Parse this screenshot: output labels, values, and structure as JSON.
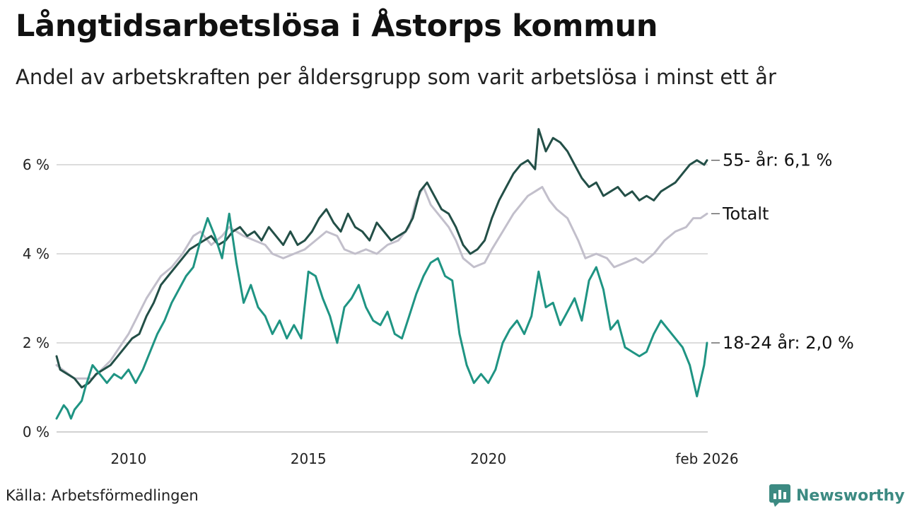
{
  "title": "Långtidsarbetslösa i Åstorps kommun",
  "subtitle": "Andel av arbetskraften per åldersgrupp som varit arbetslösa i minst ett år",
  "source": "Källa: Arbetsförmedlingen",
  "brand": {
    "name": "Newsworthy",
    "icon": "newsworthy-logo-icon",
    "color": "#3c8a82"
  },
  "chart_data": {
    "type": "line",
    "title": "Långtidsarbetslösa i Åstorps kommun",
    "xlabel": "",
    "ylabel": "",
    "x_start_month": "2008-01",
    "x_end_month": "2026-02",
    "xlim": [
      2008.0,
      2026.1
    ],
    "ylim": [
      0,
      7
    ],
    "y_ticks": [
      {
        "value": 0,
        "label": "0 %"
      },
      {
        "value": 2,
        "label": "2 %"
      },
      {
        "value": 4,
        "label": "4 %"
      },
      {
        "value": 6,
        "label": "6 %"
      }
    ],
    "x_ticks": [
      {
        "value": 2010,
        "label": "2010"
      },
      {
        "value": 2015,
        "label": "2015"
      },
      {
        "value": 2020,
        "label": "2020"
      },
      {
        "value": 2026.08,
        "label": "feb 2026"
      }
    ],
    "grid": true,
    "series": [
      {
        "name": "Totalt",
        "label": "Totalt",
        "color": "#c2bfcb",
        "width": 3,
        "points": [
          [
            2008.0,
            1.5
          ],
          [
            2008.5,
            1.2
          ],
          [
            2009.0,
            1.2
          ],
          [
            2009.5,
            1.6
          ],
          [
            2010.0,
            2.2
          ],
          [
            2010.5,
            3.0
          ],
          [
            2010.9,
            3.5
          ],
          [
            2011.2,
            3.7
          ],
          [
            2011.5,
            4.0
          ],
          [
            2011.8,
            4.4
          ],
          [
            2012.0,
            4.5
          ],
          [
            2012.3,
            4.2
          ],
          [
            2012.6,
            4.4
          ],
          [
            2012.8,
            4.6
          ],
          [
            2013.2,
            4.4
          ],
          [
            2013.5,
            4.3
          ],
          [
            2013.8,
            4.2
          ],
          [
            2014.0,
            4.0
          ],
          [
            2014.3,
            3.9
          ],
          [
            2014.6,
            4.0
          ],
          [
            2014.9,
            4.1
          ],
          [
            2015.2,
            4.3
          ],
          [
            2015.5,
            4.5
          ],
          [
            2015.8,
            4.4
          ],
          [
            2016.0,
            4.1
          ],
          [
            2016.3,
            4.0
          ],
          [
            2016.6,
            4.1
          ],
          [
            2016.9,
            4.0
          ],
          [
            2017.2,
            4.2
          ],
          [
            2017.5,
            4.3
          ],
          [
            2017.8,
            4.6
          ],
          [
            2018.0,
            5.2
          ],
          [
            2018.2,
            5.5
          ],
          [
            2018.4,
            5.1
          ],
          [
            2018.6,
            4.9
          ],
          [
            2018.9,
            4.6
          ],
          [
            2019.1,
            4.3
          ],
          [
            2019.3,
            3.9
          ],
          [
            2019.6,
            3.7
          ],
          [
            2019.9,
            3.8
          ],
          [
            2020.1,
            4.1
          ],
          [
            2020.4,
            4.5
          ],
          [
            2020.7,
            4.9
          ],
          [
            2020.9,
            5.1
          ],
          [
            2021.1,
            5.3
          ],
          [
            2021.3,
            5.4
          ],
          [
            2021.5,
            5.5
          ],
          [
            2021.7,
            5.2
          ],
          [
            2021.9,
            5.0
          ],
          [
            2022.2,
            4.8
          ],
          [
            2022.5,
            4.3
          ],
          [
            2022.7,
            3.9
          ],
          [
            2023.0,
            4.0
          ],
          [
            2023.3,
            3.9
          ],
          [
            2023.5,
            3.7
          ],
          [
            2023.8,
            3.8
          ],
          [
            2024.1,
            3.9
          ],
          [
            2024.3,
            3.8
          ],
          [
            2024.6,
            4.0
          ],
          [
            2024.9,
            4.3
          ],
          [
            2025.2,
            4.5
          ],
          [
            2025.5,
            4.6
          ],
          [
            2025.7,
            4.8
          ],
          [
            2025.9,
            4.8
          ],
          [
            2026.08,
            4.9
          ]
        ]
      },
      {
        "name": "55- år",
        "label": "55- år: 6,1 %",
        "color": "#234f47",
        "width": 3,
        "points": [
          [
            2008.0,
            1.7
          ],
          [
            2008.1,
            1.4
          ],
          [
            2008.3,
            1.3
          ],
          [
            2008.5,
            1.2
          ],
          [
            2008.7,
            1.0
          ],
          [
            2008.9,
            1.1
          ],
          [
            2009.1,
            1.3
          ],
          [
            2009.3,
            1.4
          ],
          [
            2009.5,
            1.5
          ],
          [
            2009.7,
            1.7
          ],
          [
            2009.9,
            1.9
          ],
          [
            2010.1,
            2.1
          ],
          [
            2010.3,
            2.2
          ],
          [
            2010.5,
            2.6
          ],
          [
            2010.7,
            2.9
          ],
          [
            2010.9,
            3.3
          ],
          [
            2011.1,
            3.5
          ],
          [
            2011.3,
            3.7
          ],
          [
            2011.5,
            3.9
          ],
          [
            2011.7,
            4.1
          ],
          [
            2011.9,
            4.2
          ],
          [
            2012.1,
            4.3
          ],
          [
            2012.3,
            4.4
          ],
          [
            2012.5,
            4.2
          ],
          [
            2012.7,
            4.3
          ],
          [
            2012.9,
            4.5
          ],
          [
            2013.1,
            4.6
          ],
          [
            2013.3,
            4.4
          ],
          [
            2013.5,
            4.5
          ],
          [
            2013.7,
            4.3
          ],
          [
            2013.9,
            4.6
          ],
          [
            2014.1,
            4.4
          ],
          [
            2014.3,
            4.2
          ],
          [
            2014.5,
            4.5
          ],
          [
            2014.7,
            4.2
          ],
          [
            2014.9,
            4.3
          ],
          [
            2015.1,
            4.5
          ],
          [
            2015.3,
            4.8
          ],
          [
            2015.5,
            5.0
          ],
          [
            2015.7,
            4.7
          ],
          [
            2015.9,
            4.5
          ],
          [
            2016.1,
            4.9
          ],
          [
            2016.3,
            4.6
          ],
          [
            2016.5,
            4.5
          ],
          [
            2016.7,
            4.3
          ],
          [
            2016.9,
            4.7
          ],
          [
            2017.1,
            4.5
          ],
          [
            2017.3,
            4.3
          ],
          [
            2017.5,
            4.4
          ],
          [
            2017.7,
            4.5
          ],
          [
            2017.9,
            4.8
          ],
          [
            2018.1,
            5.4
          ],
          [
            2018.3,
            5.6
          ],
          [
            2018.5,
            5.3
          ],
          [
            2018.7,
            5.0
          ],
          [
            2018.9,
            4.9
          ],
          [
            2019.1,
            4.6
          ],
          [
            2019.3,
            4.2
          ],
          [
            2019.5,
            4.0
          ],
          [
            2019.7,
            4.1
          ],
          [
            2019.9,
            4.3
          ],
          [
            2020.1,
            4.8
          ],
          [
            2020.3,
            5.2
          ],
          [
            2020.5,
            5.5
          ],
          [
            2020.7,
            5.8
          ],
          [
            2020.9,
            6.0
          ],
          [
            2021.1,
            6.1
          ],
          [
            2021.3,
            5.9
          ],
          [
            2021.4,
            6.8
          ],
          [
            2021.6,
            6.3
          ],
          [
            2021.8,
            6.6
          ],
          [
            2022.0,
            6.5
          ],
          [
            2022.2,
            6.3
          ],
          [
            2022.4,
            6.0
          ],
          [
            2022.6,
            5.7
          ],
          [
            2022.8,
            5.5
          ],
          [
            2023.0,
            5.6
          ],
          [
            2023.2,
            5.3
          ],
          [
            2023.4,
            5.4
          ],
          [
            2023.6,
            5.5
          ],
          [
            2023.8,
            5.3
          ],
          [
            2024.0,
            5.4
          ],
          [
            2024.2,
            5.2
          ],
          [
            2024.4,
            5.3
          ],
          [
            2024.6,
            5.2
          ],
          [
            2024.8,
            5.4
          ],
          [
            2025.0,
            5.5
          ],
          [
            2025.2,
            5.6
          ],
          [
            2025.4,
            5.8
          ],
          [
            2025.6,
            6.0
          ],
          [
            2025.8,
            6.1
          ],
          [
            2026.0,
            6.0
          ],
          [
            2026.08,
            6.1
          ]
        ]
      },
      {
        "name": "18-24 år",
        "label": "18-24 år: 2,0 %",
        "color": "#1f9483",
        "width": 3,
        "points": [
          [
            2008.0,
            0.3
          ],
          [
            2008.2,
            0.6
          ],
          [
            2008.3,
            0.5
          ],
          [
            2008.4,
            0.3
          ],
          [
            2008.5,
            0.5
          ],
          [
            2008.7,
            0.7
          ],
          [
            2008.8,
            1.0
          ],
          [
            2009.0,
            1.5
          ],
          [
            2009.2,
            1.3
          ],
          [
            2009.4,
            1.1
          ],
          [
            2009.6,
            1.3
          ],
          [
            2009.8,
            1.2
          ],
          [
            2010.0,
            1.4
          ],
          [
            2010.2,
            1.1
          ],
          [
            2010.4,
            1.4
          ],
          [
            2010.6,
            1.8
          ],
          [
            2010.8,
            2.2
          ],
          [
            2011.0,
            2.5
          ],
          [
            2011.2,
            2.9
          ],
          [
            2011.4,
            3.2
          ],
          [
            2011.6,
            3.5
          ],
          [
            2011.8,
            3.7
          ],
          [
            2012.0,
            4.3
          ],
          [
            2012.2,
            4.8
          ],
          [
            2012.4,
            4.4
          ],
          [
            2012.6,
            3.9
          ],
          [
            2012.8,
            4.9
          ],
          [
            2013.0,
            3.8
          ],
          [
            2013.2,
            2.9
          ],
          [
            2013.4,
            3.3
          ],
          [
            2013.6,
            2.8
          ],
          [
            2013.8,
            2.6
          ],
          [
            2014.0,
            2.2
          ],
          [
            2014.2,
            2.5
          ],
          [
            2014.4,
            2.1
          ],
          [
            2014.6,
            2.4
          ],
          [
            2014.8,
            2.1
          ],
          [
            2015.0,
            3.6
          ],
          [
            2015.2,
            3.5
          ],
          [
            2015.4,
            3.0
          ],
          [
            2015.6,
            2.6
          ],
          [
            2015.8,
            2.0
          ],
          [
            2016.0,
            2.8
          ],
          [
            2016.2,
            3.0
          ],
          [
            2016.4,
            3.3
          ],
          [
            2016.6,
            2.8
          ],
          [
            2016.8,
            2.5
          ],
          [
            2017.0,
            2.4
          ],
          [
            2017.2,
            2.7
          ],
          [
            2017.4,
            2.2
          ],
          [
            2017.6,
            2.1
          ],
          [
            2017.8,
            2.6
          ],
          [
            2018.0,
            3.1
          ],
          [
            2018.2,
            3.5
          ],
          [
            2018.4,
            3.8
          ],
          [
            2018.6,
            3.9
          ],
          [
            2018.8,
            3.5
          ],
          [
            2019.0,
            3.4
          ],
          [
            2019.2,
            2.2
          ],
          [
            2019.4,
            1.5
          ],
          [
            2019.6,
            1.1
          ],
          [
            2019.8,
            1.3
          ],
          [
            2020.0,
            1.1
          ],
          [
            2020.2,
            1.4
          ],
          [
            2020.4,
            2.0
          ],
          [
            2020.6,
            2.3
          ],
          [
            2020.8,
            2.5
          ],
          [
            2021.0,
            2.2
          ],
          [
            2021.2,
            2.6
          ],
          [
            2021.4,
            3.6
          ],
          [
            2021.6,
            2.8
          ],
          [
            2021.8,
            2.9
          ],
          [
            2022.0,
            2.4
          ],
          [
            2022.2,
            2.7
          ],
          [
            2022.4,
            3.0
          ],
          [
            2022.6,
            2.5
          ],
          [
            2022.8,
            3.4
          ],
          [
            2023.0,
            3.7
          ],
          [
            2023.2,
            3.2
          ],
          [
            2023.4,
            2.3
          ],
          [
            2023.6,
            2.5
          ],
          [
            2023.8,
            1.9
          ],
          [
            2024.0,
            1.8
          ],
          [
            2024.2,
            1.7
          ],
          [
            2024.4,
            1.8
          ],
          [
            2024.6,
            2.2
          ],
          [
            2024.8,
            2.5
          ],
          [
            2025.0,
            2.3
          ],
          [
            2025.2,
            2.1
          ],
          [
            2025.4,
            1.9
          ],
          [
            2025.6,
            1.5
          ],
          [
            2025.8,
            0.8
          ],
          [
            2026.0,
            1.5
          ],
          [
            2026.08,
            2.0
          ]
        ]
      }
    ]
  }
}
